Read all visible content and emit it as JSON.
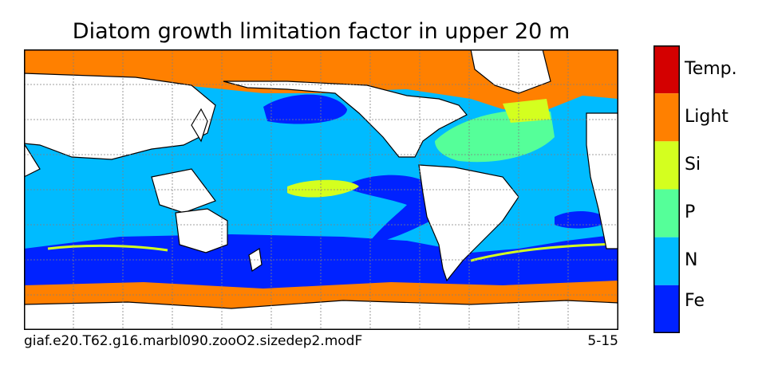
{
  "title": "Diatom growth limitation factor in upper 20 m",
  "caption_left": "giaf.e20.T62.g16.marbl090.zooO2.sizedep2.modF",
  "caption_right": "5-15",
  "colorbar": {
    "categories": [
      {
        "label": "Temp.",
        "color": "#d40000"
      },
      {
        "label": "Light",
        "color": "#ff8000"
      },
      {
        "label": "Si",
        "color": "#d4ff1f"
      },
      {
        "label": "P",
        "color": "#55ff99"
      },
      {
        "label": "N",
        "color": "#00bbff"
      },
      {
        "label": "Fe",
        "color": "#0022ff"
      }
    ]
  },
  "colors": {
    "land": "#ffffff",
    "coast": "#000000",
    "grid": "#808080"
  }
}
